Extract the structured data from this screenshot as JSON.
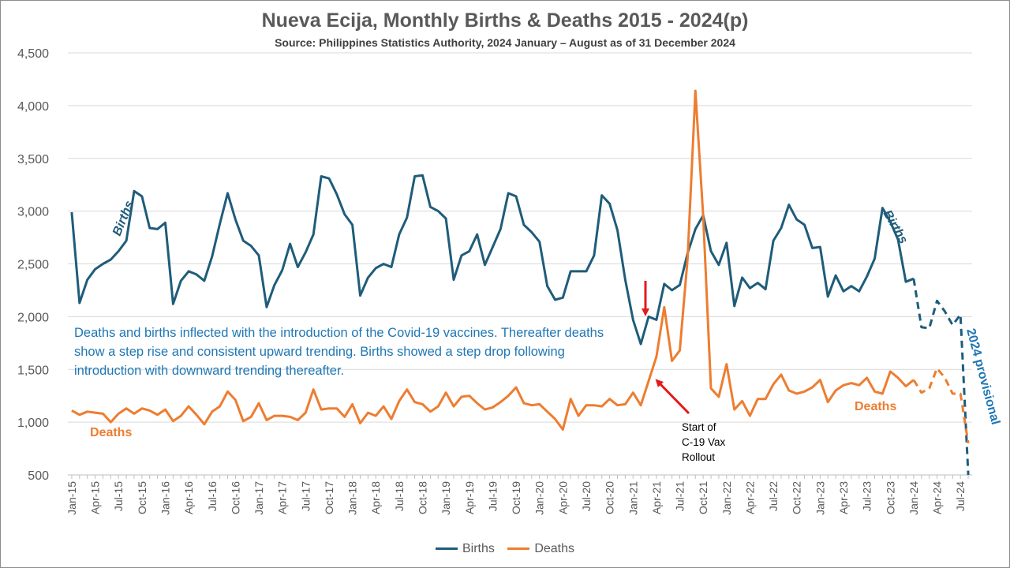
{
  "title": "Nueva Ecija, Monthly Births & Deaths 2015 - 2024(p)",
  "subtitle": "Source: Philippines Statistics Authority, 2024 January – August as of 31 December 2024",
  "annotation_note": "Deaths and births inflected with the introduction of the Covid-19 vaccines. Thereafter deaths show a step rise and consistent upward trending.  Births showed a step drop following introduction with downward trending thereafter.",
  "rollout_label": [
    "Start of",
    "C-19 Vax",
    "Rollout"
  ],
  "provisional_label": "2024 provisional",
  "series_labels": {
    "births_left": "Births",
    "births_right": "Births",
    "deaths_left": "Deaths",
    "deaths_right": "Deaths"
  },
  "colors": {
    "births": "#1f5c7a",
    "deaths": "#ed7d31",
    "arrow": "#e31a1c",
    "provisional_label": "#1f77b4",
    "grid": "#d9d9d9",
    "axis_text": "#595959"
  },
  "legend": [
    {
      "name": "Births",
      "color": "#1f5c7a"
    },
    {
      "name": "Deaths",
      "color": "#ed7d31"
    }
  ],
  "chart_data": {
    "type": "line",
    "ylim": [
      500,
      4500
    ],
    "yticks": [
      "500",
      "1,000",
      "1,500",
      "2,000",
      "2,500",
      "3,000",
      "3,500",
      "4,000",
      "4,500"
    ],
    "grid": "horizontal",
    "legend_position": "bottom",
    "x_tick_labels": [
      "Jan-15",
      "Apr-15",
      "Jul-15",
      "Oct-15",
      "Jan-16",
      "Apr-16",
      "Jul-16",
      "Oct-16",
      "Jan-17",
      "Apr-17",
      "Jul-17",
      "Oct-17",
      "Jan-18",
      "Apr-18",
      "Jul-18",
      "Oct-18",
      "Jan-19",
      "Apr-19",
      "Jul-19",
      "Oct-19",
      "Jan-20",
      "Apr-20",
      "Jul-20",
      "Oct-20",
      "Jan-21",
      "Apr-21",
      "Jul-21",
      "Oct-21",
      "Jan-22",
      "Apr-22",
      "Jul-22",
      "Oct-22",
      "Jan-23",
      "Apr-23",
      "Jul-23",
      "Oct-23",
      "Jan-24",
      "Apr-24",
      "Jul-24"
    ],
    "x_start": "Jan-15",
    "provisional_from": "Jan-24",
    "series": [
      {
        "name": "Births",
        "values": [
          2990,
          2130,
          2350,
          2450,
          2500,
          2540,
          2620,
          2720,
          3190,
          3140,
          2840,
          2830,
          2890,
          2120,
          2340,
          2430,
          2400,
          2340,
          2570,
          2880,
          3170,
          2920,
          2720,
          2670,
          2580,
          2090,
          2300,
          2440,
          2690,
          2470,
          2610,
          2780,
          3330,
          3310,
          3160,
          2970,
          2870,
          2200,
          2370,
          2460,
          2500,
          2470,
          2780,
          2940,
          3330,
          3340,
          3040,
          3000,
          2930,
          2350,
          2580,
          2620,
          2780,
          2490,
          2660,
          2830,
          3170,
          3140,
          2870,
          2800,
          2710,
          2290,
          2160,
          2180,
          2430,
          2430,
          2430,
          2580,
          3150,
          3070,
          2820,
          2350,
          1970,
          1740,
          2000,
          1970,
          2310,
          2250,
          2300,
          2600,
          2830,
          2960,
          2620,
          2490,
          2700,
          2100,
          2370,
          2270,
          2320,
          2260,
          2720,
          2840,
          3060,
          2920,
          2870,
          2650,
          2660,
          2190,
          2390,
          2240,
          2290,
          2240,
          2380,
          2550,
          3030,
          2900,
          2730,
          2330,
          2360,
          1900,
          1890,
          2150,
          2050,
          1920,
          2020,
          500
        ]
      },
      {
        "name": "Deaths",
        "values": [
          1110,
          1070,
          1100,
          1090,
          1080,
          1000,
          1080,
          1130,
          1080,
          1130,
          1110,
          1070,
          1120,
          1010,
          1060,
          1150,
          1070,
          980,
          1100,
          1150,
          1290,
          1210,
          1010,
          1050,
          1180,
          1020,
          1060,
          1060,
          1050,
          1020,
          1090,
          1310,
          1120,
          1130,
          1130,
          1050,
          1170,
          990,
          1090,
          1060,
          1150,
          1030,
          1200,
          1310,
          1190,
          1170,
          1100,
          1150,
          1280,
          1150,
          1240,
          1250,
          1180,
          1120,
          1140,
          1190,
          1250,
          1330,
          1180,
          1160,
          1170,
          1100,
          1030,
          930,
          1220,
          1060,
          1160,
          1160,
          1150,
          1220,
          1160,
          1170,
          1280,
          1160,
          1390,
          1620,
          2090,
          1580,
          1680,
          2550,
          4140,
          2950,
          1320,
          1240,
          1550,
          1120,
          1200,
          1060,
          1220,
          1220,
          1360,
          1450,
          1300,
          1270,
          1290,
          1330,
          1400,
          1190,
          1300,
          1350,
          1370,
          1350,
          1420,
          1290,
          1270,
          1480,
          1420,
          1340,
          1400,
          1280,
          1320,
          1510,
          1420,
          1270,
          1270,
          800
        ]
      }
    ]
  }
}
